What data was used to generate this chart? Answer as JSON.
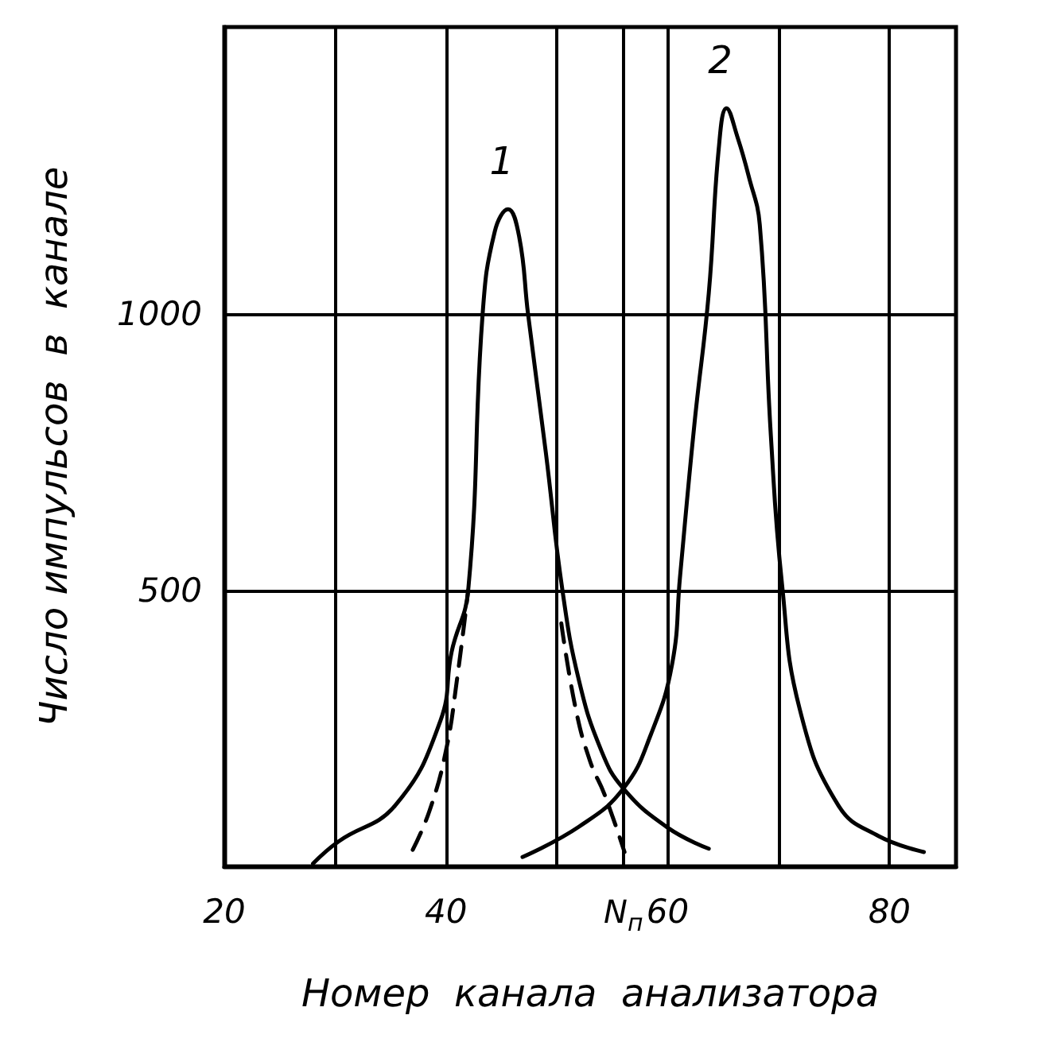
{
  "chart_data": {
    "type": "line",
    "xlabel": "Номер  канала  анализатора",
    "ylabel": "Число импульсов  в  канале",
    "xlim": [
      20,
      86
    ],
    "xticks": [
      20,
      {
        "value": 30,
        "label": null
      },
      40,
      {
        "value": 50,
        "label": null
      },
      60,
      {
        "value": 70,
        "label": null
      },
      80
    ],
    "ylim": [
      0,
      1520
    ],
    "yticks": [
      500,
      1000
    ],
    "grid": true,
    "marker": "none",
    "series": [
      {
        "color": "#000000",
        "line_style": "solid",
        "x": [
          28,
          30.3,
          35.4,
          39.5,
          40.5,
          42,
          43.3,
          44.4,
          45.6,
          46.6,
          47.4,
          49,
          50.5,
          52,
          54,
          56,
          60,
          63.7
        ],
        "values": [
          5,
          45,
          110,
          264,
          388,
          500,
          1000,
          1150,
          1190,
          1140,
          1000,
          750,
          500,
          336,
          210,
          141,
          70,
          32
        ]
      },
      {
        "color": "#000000",
        "line_style": "dashed",
        "x": [
          37,
          38.5,
          40,
          41,
          42
        ],
        "values": [
          30,
          100,
          210,
          340,
          500
        ]
      },
      {
        "color": "#000000",
        "line_style": "dashed",
        "x": [
          50.4,
          51.7,
          53,
          54.3,
          56.1
        ],
        "values": [
          440,
          285,
          190,
          130,
          26
        ]
      },
      {
        "color": "#000000",
        "line_style": "solid",
        "x": [
          46.9,
          52,
          56,
          58.5,
          60.4,
          61.1,
          62.4,
          63.7,
          64.6,
          65.3,
          66.3,
          67.3,
          68.3,
          69.3,
          70.3,
          71.9,
          75.4,
          79,
          83.1
        ],
        "values": [
          17,
          72,
          141,
          240,
          367,
          523,
          800,
          1038,
          1300,
          1373,
          1320,
          1250,
          1162,
          780,
          512,
          285,
          110,
          55,
          26
        ]
      }
    ],
    "ref_lines": [
      {
        "axis": "x",
        "value": 56,
        "label": "N$_{п}$",
        "line_style": "solid",
        "color": "#000000"
      }
    ],
    "annotations": [
      {
        "text": "1",
        "x": 45.6,
        "y": 1190
      },
      {
        "text": "2",
        "x": 65.3,
        "y": 1373
      }
    ]
  }
}
